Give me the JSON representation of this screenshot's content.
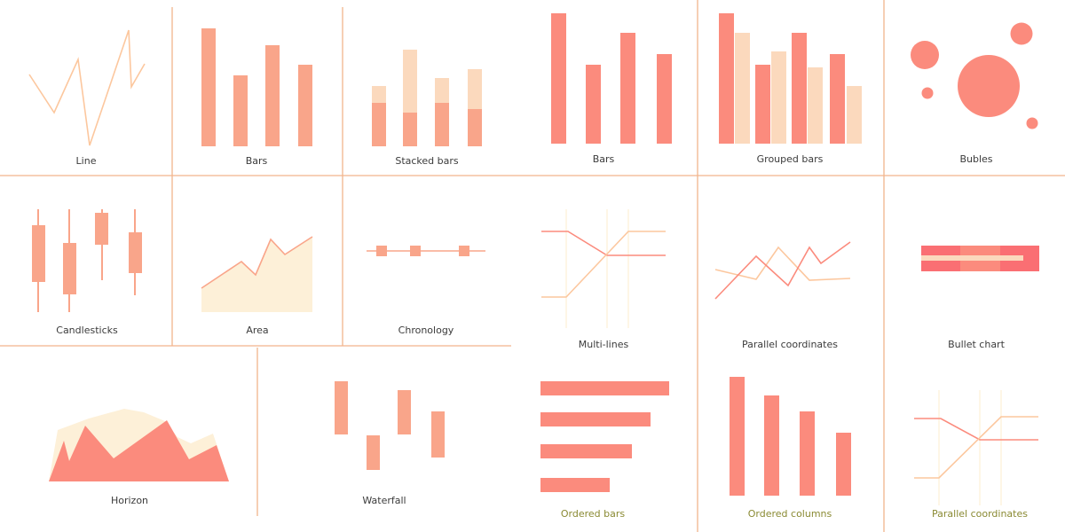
{
  "palette": {
    "salmon": "#fb8b7d",
    "salmon_light": "#f9a58a",
    "cream": "#fbd9bd",
    "cream_light": "#fdf0d8",
    "peach_line": "#fcc79e",
    "bar_red": "#fa6f73",
    "divider": "#f2b58c",
    "label_text": "#3b3b3b",
    "label_olive": "#8a8a33"
  },
  "panels": [
    {
      "id": "line",
      "label": "Line",
      "icon": "line-chart-icon"
    },
    {
      "id": "bars-1",
      "label": "Bars",
      "icon": "bar-chart-icon"
    },
    {
      "id": "stacked-bars",
      "label": "Stacked bars",
      "icon": "stacked-bar-chart-icon"
    },
    {
      "id": "bars-2",
      "label": "Bars",
      "icon": "bar-chart-icon"
    },
    {
      "id": "grouped-bars",
      "label": "Grouped bars",
      "icon": "grouped-bar-chart-icon"
    },
    {
      "id": "bubbles",
      "label": "Bubles",
      "icon": "bubble-chart-icon"
    },
    {
      "id": "candlesticks",
      "label": "Candlesticks",
      "icon": "candlestick-chart-icon"
    },
    {
      "id": "area",
      "label": "Area",
      "icon": "area-chart-icon"
    },
    {
      "id": "chronology",
      "label": "Chronology",
      "icon": "timeline-chart-icon"
    },
    {
      "id": "multi-lines",
      "label": "Multi-lines",
      "icon": "multi-line-chart-icon"
    },
    {
      "id": "parallel-coordinates-1",
      "label": "Parallel coordinates",
      "icon": "parallel-coordinates-icon"
    },
    {
      "id": "bullet-chart",
      "label": "Bullet chart",
      "icon": "bullet-chart-icon"
    },
    {
      "id": "horizon",
      "label": "Horizon",
      "icon": "horizon-chart-icon"
    },
    {
      "id": "waterfall",
      "label": "Waterfall",
      "icon": "waterfall-chart-icon"
    },
    {
      "id": "ordered-bars",
      "label": "Ordered bars",
      "icon": "ordered-bar-chart-icon"
    },
    {
      "id": "ordered-columns",
      "label": "Ordered columns",
      "icon": "ordered-column-chart-icon"
    },
    {
      "id": "parallel-coordinates-2",
      "label": "Parallel coordinates",
      "icon": "parallel-coordinates-icon"
    }
  ]
}
